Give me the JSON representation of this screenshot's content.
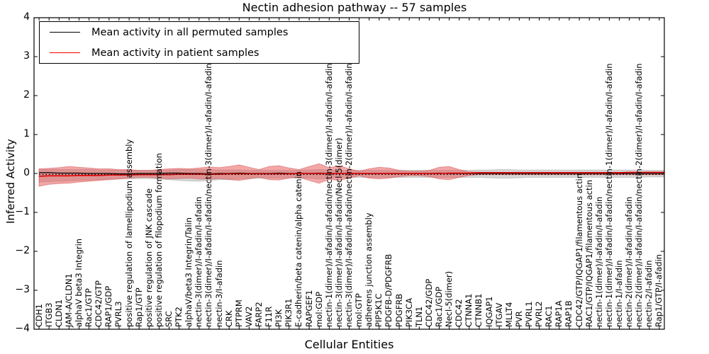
{
  "figure": {
    "title": "Nectin adhesion pathway -- 57 samples",
    "xlabel": "Cellular Entities",
    "ylabel": "Inferred Activity"
  },
  "legend": {
    "entries": [
      {
        "label": "Mean activity in all permuted samples",
        "color": "#000000"
      },
      {
        "label": "Mean activity in patient samples",
        "color": "#ff0000"
      }
    ]
  },
  "chart_data": {
    "type": "line",
    "title": "Nectin adhesion pathway -- 57 samples",
    "xlabel": "Cellular Entities",
    "ylabel": "Inferred Activity",
    "ylim": [
      -4,
      4
    ],
    "yticks": [
      4,
      3,
      2,
      1,
      0,
      -1,
      -2,
      -3,
      -4
    ],
    "ytick_labels": [
      "4",
      "3",
      "2",
      "1",
      "0",
      "−1",
      "−2",
      "−3",
      "−4"
    ],
    "grid": false,
    "legend_position": "upper left",
    "categories": [
      "CDH1",
      "ITGB3",
      "CLDN1",
      "JAM-A/CLDN1",
      "alphaV beta3 Integrin",
      "Rac1/GTP",
      "CDC42/GTP",
      "RAP1/GDP",
      "PVRL3",
      "positive regulation of lamellipodium assembly",
      "Rap1/GTP",
      "positive regulation of JNK cascade",
      "positive regulation of filopodium formation",
      "SRC",
      "PTK2",
      "alphaV/beta3 Integrin/Talin",
      "nectin-3(dimer)/I-afadin/I-afadin",
      "nectin-3(dimer)/I-afadin/I-afadin/nectin-3(dimer)/I-afadin/I-afadin",
      "nectin-3/I-afadin",
      "CRK",
      "PTPRM",
      "VAV2",
      "FARP2",
      "F11R",
      "PI3K",
      "PIK3R1",
      "E-cadherin/beta catenin/alpha catenin",
      "RAPGEF1",
      "mol:GDP",
      "nectin-1(dimer)/I-afadin/I-afadin/nectin-3(dimer)/I-afadin/I-afadin",
      "nectin-3(dimer)/I-afadin/I-afadin/Necl-5(dimer)",
      "nectin-3(dimer)/I-afadin/I-afadin/nectin-2(dimer)/I-afadin/I-afadin",
      "mol:GTP",
      "adherens junction assembly",
      "PIP5K1C",
      "PDGFB-D/PDGFRB",
      "PDGFRB",
      "PIK3CA",
      "TLN1",
      "CDC42/GDP",
      "Rac1/GDP",
      "Necl-5(dimer)",
      "CDC42",
      "CTNNA1",
      "CTNNB1",
      "IQGAP1",
      "ITGAV",
      "MLLT4",
      "PVR",
      "PVRL1",
      "PVRL2",
      "RAC1",
      "RAP1A",
      "RAP1B",
      "CDC42/GTP/IQGAP1/filamentous actin",
      "RAC1/GTP/IQGAP1/filamentous actin",
      "nectin-1(dimer)/I-afadin/I-afadin",
      "nectin-1(dimer)/I-afadin/I-afadin/nectin-1(dimer)/I-afadin/I-afadin",
      "nectin-1/I-afadin",
      "nectin-2(dimer)/I-afadin/I-afadin",
      "nectin-2(dimer)/I-afadin/I-afadin/nectin-2(dimer)/I-afadin/I-afadin",
      "nectin-2/I-afadin",
      "Rap1/GTP/I-afadin"
    ],
    "series": [
      {
        "name": "Mean activity in all permuted samples",
        "color": "#000000",
        "style": "solid",
        "width": 1.2,
        "values": [
          0.02,
          0.02,
          0.01,
          0.01,
          0.01,
          0,
          0,
          0,
          -0.01,
          -0.01,
          0,
          0,
          0,
          0.01,
          0.01,
          0,
          0,
          -0.01,
          0,
          0,
          0.01,
          0,
          0,
          0,
          0.01,
          0,
          0,
          0,
          0.01,
          0,
          0,
          0,
          0,
          0,
          0,
          0,
          0,
          0,
          0,
          0,
          0.01,
          0,
          0,
          0,
          0,
          0,
          0,
          0,
          0,
          0,
          0,
          0,
          0,
          0,
          0,
          0,
          0,
          0,
          0,
          0,
          0,
          0,
          0
        ]
      },
      {
        "name": "Mean activity in patient samples",
        "color": "#e00000",
        "style": "solid",
        "width": 1.6,
        "values": [
          -0.07,
          -0.06,
          -0.06,
          -0.06,
          -0.05,
          -0.05,
          -0.05,
          -0.04,
          -0.04,
          -0.04,
          -0.03,
          -0.03,
          -0.03,
          -0.03,
          -0.02,
          -0.02,
          -0.02,
          -0.02,
          -0.02,
          -0.01,
          -0.01,
          -0.01,
          -0.01,
          -0.01,
          -0.01,
          -0.01,
          0,
          0,
          0,
          0,
          0,
          0,
          0,
          0,
          0,
          0,
          0,
          0,
          0,
          0,
          0,
          0.01,
          0.01,
          0.01,
          0.02,
          0.02,
          0.02,
          0.02,
          0.02,
          0.02,
          0.02,
          0.02,
          0.02,
          0.02,
          0.02,
          0.02,
          0.02,
          0.02,
          0.02,
          0.03,
          0.03,
          0.03,
          0.03
        ]
      },
      {
        "name": "permuted mean dotted overlay",
        "color": "#000000",
        "style": "dotted",
        "width": 1.2,
        "constant": -0.025
      }
    ],
    "bands": [
      {
        "name": "permuted-samples-band",
        "color": "#8a8a8a",
        "opacity": 0.35,
        "edge": "#9a9a9a",
        "upper": [
          0.1,
          0.1,
          0.1,
          0.1,
          0.1,
          0.1,
          0.09,
          0.09,
          0.08,
          0.08,
          0.08,
          0.08,
          0.08,
          0.09,
          0.1,
          0.1,
          0.1,
          0.1,
          0.09,
          0.09,
          0.09,
          0.08,
          0.08,
          0.08,
          0.08,
          0.08,
          0.08,
          0.09,
          0.1,
          0.09,
          0.08,
          0.08,
          0.08,
          0.08,
          0.08,
          0.08,
          0.08,
          0.08,
          0.08,
          0.08,
          0.08,
          0.08,
          0.08,
          0.08,
          0.09,
          0.09,
          0.1,
          0.1,
          0.09,
          0.09,
          0.09,
          0.09,
          0.09,
          0.09,
          0.09,
          0.09,
          0.09,
          0.09,
          0.09,
          0.09,
          0.09,
          0.08,
          0.08
        ],
        "lower": [
          -0.22,
          -0.21,
          -0.2,
          -0.19,
          -0.18,
          -0.17,
          -0.16,
          -0.15,
          -0.14,
          -0.13,
          -0.13,
          -0.13,
          -0.14,
          -0.16,
          -0.18,
          -0.19,
          -0.2,
          -0.18,
          -0.16,
          -0.15,
          -0.14,
          -0.12,
          -0.12,
          -0.12,
          -0.12,
          -0.11,
          -0.11,
          -0.12,
          -0.14,
          -0.12,
          -0.1,
          -0.1,
          -0.1,
          -0.1,
          -0.1,
          -0.1,
          -0.1,
          -0.1,
          -0.1,
          -0.1,
          -0.1,
          -0.1,
          -0.1,
          -0.1,
          -0.1,
          -0.11,
          -0.12,
          -0.12,
          -0.11,
          -0.1,
          -0.1,
          -0.1,
          -0.1,
          -0.1,
          -0.1,
          -0.1,
          -0.1,
          -0.1,
          -0.1,
          -0.1,
          -0.1,
          -0.09,
          -0.09
        ]
      },
      {
        "name": "patient-samples-band",
        "color": "#e85050",
        "opacity": 0.5,
        "edge": "#d04040",
        "upper": [
          0.12,
          0.13,
          0.15,
          0.18,
          0.16,
          0.14,
          0.12,
          0.12,
          0.1,
          0.1,
          0.08,
          0.08,
          0.1,
          0.12,
          0.13,
          0.12,
          0.14,
          0.17,
          0.15,
          0.18,
          0.22,
          0.16,
          0.1,
          0.18,
          0.2,
          0.14,
          0.1,
          0.18,
          0.25,
          0.15,
          0.2,
          0.12,
          0.06,
          0.12,
          0.16,
          0.14,
          0.08,
          0.06,
          0.06,
          0.08,
          0.16,
          0.18,
          0.1,
          0.04,
          0.03,
          0.03,
          0.03,
          0.03,
          0.03,
          0.03,
          0.03,
          0.03,
          0.03,
          0.03,
          0.03,
          0.03,
          0.03,
          0.03,
          0.03,
          0.03,
          0.03,
          0.03,
          0.03
        ],
        "lower": [
          -0.33,
          -0.28,
          -0.26,
          -0.25,
          -0.22,
          -0.2,
          -0.18,
          -0.16,
          -0.14,
          -0.12,
          -0.1,
          -0.1,
          -0.12,
          -0.14,
          -0.13,
          -0.12,
          -0.14,
          -0.15,
          -0.13,
          -0.16,
          -0.18,
          -0.14,
          -0.1,
          -0.16,
          -0.17,
          -0.12,
          -0.1,
          -0.18,
          -0.25,
          -0.15,
          -0.18,
          -0.12,
          -0.06,
          -0.12,
          -0.14,
          -0.12,
          -0.08,
          -0.06,
          -0.06,
          -0.08,
          -0.14,
          -0.16,
          -0.1,
          -0.05,
          -0.03,
          -0.03,
          -0.03,
          -0.03,
          -0.03,
          -0.03,
          -0.03,
          -0.03,
          -0.03,
          -0.03,
          -0.03,
          -0.03,
          -0.03,
          -0.03,
          -0.03,
          -0.03,
          -0.03,
          -0.03,
          -0.03
        ]
      }
    ]
  }
}
